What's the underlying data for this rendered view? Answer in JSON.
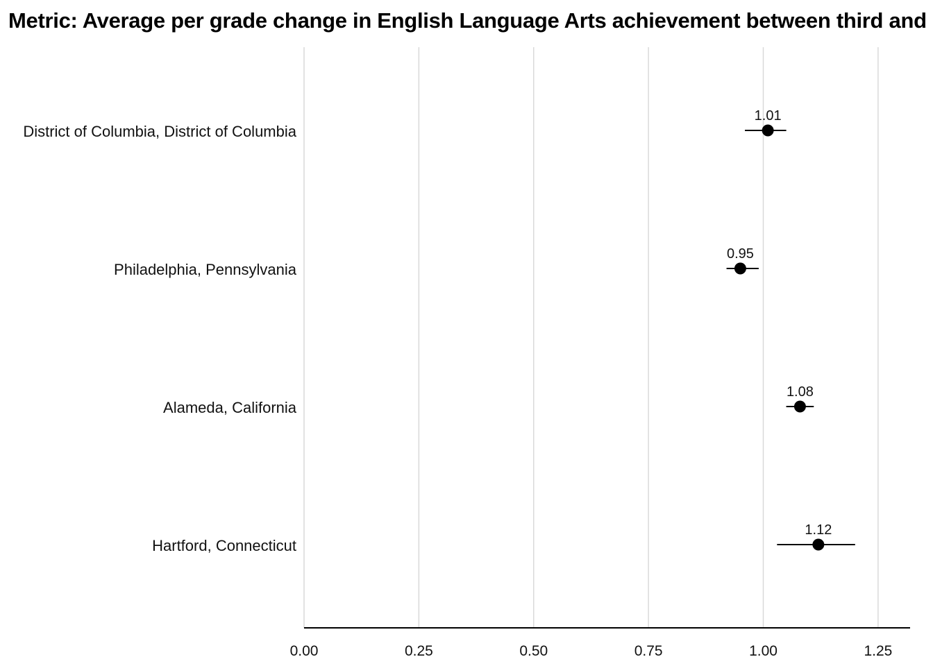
{
  "chart_data": {
    "type": "scatter",
    "title": "Metric: Average per grade change in English Language Arts achievement between third and eighth grade",
    "xlabel": "",
    "ylabel": "",
    "xlim": [
      0,
      1.32
    ],
    "x_ticks": [
      0.0,
      0.25,
      0.5,
      0.75,
      1.0,
      1.25
    ],
    "x_tick_labels": [
      "0.00",
      "0.25",
      "0.50",
      "0.75",
      "1.00",
      "1.25"
    ],
    "grid": "vertical",
    "categories": [
      "District of Columbia, District of Columbia",
      "Philadelphia, Pennsylvania",
      "Alameda, California",
      "Hartford, Connecticut"
    ],
    "values": [
      1.01,
      0.95,
      1.08,
      1.12
    ],
    "value_labels": [
      "1.01",
      "0.95",
      "1.08",
      "1.12"
    ],
    "ci_low": [
      0.96,
      0.92,
      1.05,
      1.03
    ],
    "ci_high": [
      1.05,
      0.99,
      1.11,
      1.2
    ],
    "colors": {
      "point": "#000000",
      "gridline": "#d9d9d9",
      "axis": "#000000"
    }
  }
}
